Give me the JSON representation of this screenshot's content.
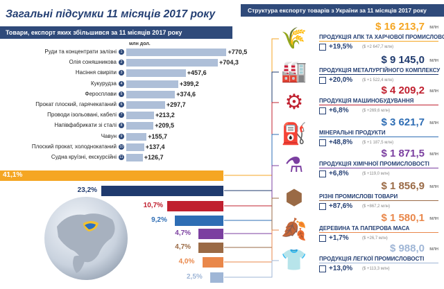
{
  "title": "Загальні підсумки 11 місяців 2017 року",
  "left_subtitle": "Товари, експорт яких збільшився за 11 місяців 2017 року",
  "right_subtitle": "Структура експорту товарів з України за 11 місяців 2017 року",
  "unit_header": "млн дол.",
  "growth_items": [
    {
      "n": "1",
      "label": "Руди та концентрати залізні",
      "value": "+770,5"
    },
    {
      "n": "2",
      "label": "Олія соняшникова",
      "value": "+704,3"
    },
    {
      "n": "3",
      "label": "Насіння свиріпи",
      "value": "+457,6"
    },
    {
      "n": "4",
      "label": "Кукурудза",
      "value": "+399,2"
    },
    {
      "n": "5",
      "label": "Феросплави",
      "value": "+374,6"
    },
    {
      "n": "6",
      "label": "Прокат плоский, гарячекатаний",
      "value": "+297,7"
    },
    {
      "n": "7",
      "label": "Проводи ізольовані, кабелі",
      "value": "+213,2"
    },
    {
      "n": "8",
      "label": "Напівфабрикати зі сталі",
      "value": "+209,5"
    },
    {
      "n": "9",
      "label": "Чавун",
      "value": "+155,7"
    },
    {
      "n": "10",
      "label": "Плоский прокат, холоднокатаний",
      "value": "+137,4"
    },
    {
      "n": "11",
      "label": "Судна круїзні, екскурсійні",
      "value": "+126,7"
    }
  ],
  "share_items": [
    {
      "pct": "41,1%",
      "share": 41.1,
      "color": "#f5a623"
    },
    {
      "pct": "23,2%",
      "share": 23.2,
      "color": "#1f3a6e"
    },
    {
      "pct": "10,7%",
      "share": 10.7,
      "color": "#c0202f"
    },
    {
      "pct": "9,2%",
      "share": 9.2,
      "color": "#2e6db4"
    },
    {
      "pct": "4,7%",
      "share": 4.7,
      "color": "#7b3fa0"
    },
    {
      "pct": "4,7%",
      "share": 4.7,
      "color": "#9a6a45"
    },
    {
      "pct": "4,0%",
      "share": 4.0,
      "color": "#e9874a"
    },
    {
      "pct": "2,5%",
      "share": 2.5,
      "color": "#9fb6d6"
    }
  ],
  "sectors": [
    {
      "name": "ПРОДУКЦІЯ АПК ТА ХАРЧОВОЇ ПРОМИСЛОВОСТІ",
      "total": "$ 16 213,7",
      "unit": "млн",
      "pct": "+19,5%",
      "abs": "($ +2 647,7 млн)",
      "color": "#f5a623",
      "icon": "wheat-cow-icon",
      "glyph": "🌾"
    },
    {
      "name": "ПРОДУКЦІЯ МЕТАЛУРГІЙНОГО КОМПЛЕКСУ",
      "total": "$ 9 145,0",
      "unit": "млн",
      "pct": "+20,0%",
      "abs": "($ +1 522,4 млн)",
      "color": "#1f3a6e",
      "icon": "factory-icon",
      "glyph": "🏭"
    },
    {
      "name": "ПРОДУКЦІЯ МАШИНОБУДУВАННЯ",
      "total": "$ 4 209,2",
      "unit": "млн",
      "pct": "+6,8%",
      "abs": "($ +269,6 млн)",
      "color": "#c0202f",
      "icon": "gears-icon",
      "glyph": "⚙"
    },
    {
      "name": "МІНЕРАЛЬНІ ПРОДУКТИ",
      "total": "$ 3 621,7",
      "unit": "млн",
      "pct": "+48,8%",
      "abs": "($ +1 187,5 млн)",
      "color": "#2e6db4",
      "icon": "oil-rig-icon",
      "glyph": "⛽"
    },
    {
      "name": "ПРОДУКЦІЯ ХІМІЧНОЇ ПРОМИСЛОВОСТІ",
      "total": "$ 1 871,5",
      "unit": "млн",
      "pct": "+6,8%",
      "abs": "($ +119,0 млн)",
      "color": "#7b3fa0",
      "icon": "flask-icon",
      "glyph": "⚗"
    },
    {
      "name": "РІЗНІ ПРОМИСЛОВІ ТОВАРИ",
      "total": "$ 1 856,9",
      "unit": "млн",
      "pct": "+87,6%",
      "abs": "($ +867,2 млн)",
      "color": "#9a6a45",
      "icon": "hex-nut-icon",
      "glyph": "⬢"
    },
    {
      "name": "ДЕРЕВИНА ТА ПАПЕРОВА МАСА",
      "total": "$ 1 580,1",
      "unit": "млн",
      "pct": "+1,7%",
      "abs": "($ +26,7 млн)",
      "color": "#e9874a",
      "icon": "leaf-icon",
      "glyph": "🍂"
    },
    {
      "name": "ПРОДУКЦІЯ ЛЕГКОЇ ПРОМИСЛОВОСТІ",
      "total": "$ 988,0",
      "unit": "млн",
      "pct": "+13,0%",
      "abs": "($ +113,3 млн)",
      "color": "#9fb6d6",
      "icon": "tshirt-icon",
      "glyph": "👕"
    }
  ],
  "chart_data": {
    "type": "bar",
    "categories": [
      "Руди та концентрати залізні",
      "Олія соняшникова",
      "Насіння свиріпи",
      "Кукурудза",
      "Феросплави",
      "Прокат плоский, гарячекатаний",
      "Проводи ізольовані, кабелі",
      "Напівфабрикати зі сталі",
      "Чавун",
      "Плоский прокат, холоднокатаний",
      "Судна круїзні, екскурсійні"
    ],
    "values": [
      770.5,
      704.3,
      457.6,
      399.2,
      374.6,
      297.7,
      213.2,
      209.5,
      155.7,
      137.4,
      126.7
    ],
    "title": "Товари, експорт яких збільшився за 11 місяців 2017 року",
    "ylabel": "млн дол.",
    "xlim": [
      0,
      800
    ]
  }
}
